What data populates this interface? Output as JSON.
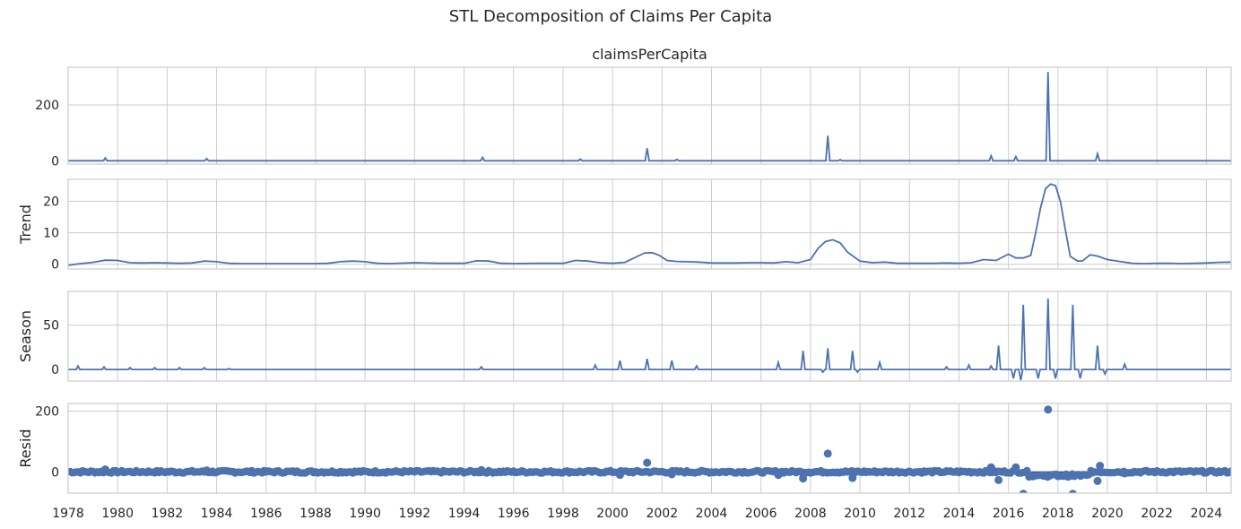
{
  "figure": {
    "title": "STL Decomposition of Claims Per Capita"
  },
  "chart_data": [
    {
      "type": "line",
      "title": "claimsPerCapita",
      "ylabel": "",
      "xlim": [
        1978,
        2025
      ],
      "ylim": [
        -12,
        335
      ],
      "yticks": [
        0,
        200
      ],
      "xticks": [
        1978,
        1980,
        1982,
        1984,
        1986,
        1988,
        1990,
        1992,
        1994,
        1996,
        1998,
        2000,
        2002,
        2004,
        2006,
        2008,
        2010,
        2012,
        2014,
        2016,
        2018,
        2020,
        2022,
        2024
      ],
      "xticks_shown": false,
      "grid": true,
      "color": "#4c72b0",
      "baseline": 0,
      "spikes": [
        [
          1979.5,
          10
        ],
        [
          1983.6,
          8
        ],
        [
          1994.75,
          12
        ],
        [
          1998.7,
          6
        ],
        [
          2001.4,
          45
        ],
        [
          2002.6,
          5
        ],
        [
          2008.7,
          90
        ],
        [
          2009.2,
          4
        ],
        [
          2015.3,
          18
        ],
        [
          2016.3,
          15
        ],
        [
          2017.6,
          318
        ],
        [
          2019.6,
          25
        ]
      ]
    },
    {
      "type": "line",
      "title": "",
      "ylabel": "Trend",
      "xlim": [
        1978,
        2025
      ],
      "ylim": [
        -1.5,
        27
      ],
      "yticks": [
        0,
        10,
        20
      ],
      "xticks": [
        1978,
        1980,
        1982,
        1984,
        1986,
        1988,
        1990,
        1992,
        1994,
        1996,
        1998,
        2000,
        2002,
        2004,
        2006,
        2008,
        2010,
        2012,
        2014,
        2016,
        2018,
        2020,
        2022,
        2024
      ],
      "xticks_shown": false,
      "grid": true,
      "color": "#4c72b0",
      "x": [
        1978,
        1978.5,
        1979,
        1979.5,
        1980,
        1980.5,
        1981,
        1981.5,
        1982,
        1982.5,
        1983,
        1983.5,
        1984,
        1984.5,
        1985,
        1986,
        1987,
        1988,
        1988.5,
        1989,
        1989.5,
        1990,
        1990.5,
        1991,
        1992,
        1993,
        1994,
        1994.5,
        1995,
        1995.5,
        1996,
        1997,
        1998,
        1998.5,
        1999,
        1999.5,
        2000,
        2000.5,
        2001,
        2001.3,
        2001.6,
        2001.9,
        2002.2,
        2002.6,
        2003,
        2003.5,
        2004,
        2004.5,
        2005,
        2005.5,
        2006,
        2006.5,
        2007,
        2007.5,
        2008,
        2008.3,
        2008.6,
        2008.9,
        2009.2,
        2009.5,
        2010,
        2010.5,
        2011,
        2011.5,
        2012,
        2012.5,
        2013,
        2013.5,
        2014,
        2014.5,
        2015,
        2015.5,
        2016,
        2016.3,
        2016.6,
        2016.9,
        2017.1,
        2017.3,
        2017.5,
        2017.7,
        2017.9,
        2018.1,
        2018.3,
        2018.5,
        2018.8,
        2019,
        2019.3,
        2019.6,
        2020,
        2020.5,
        2021,
        2021.5,
        2022,
        2022.5,
        2023,
        2023.5,
        2024,
        2024.5,
        2025
      ],
      "y": [
        -0.3,
        0.2,
        0.6,
        1.3,
        1.2,
        0.5,
        0.4,
        0.5,
        0.4,
        0.3,
        0.4,
        1.0,
        0.8,
        0.3,
        0.2,
        0.2,
        0.2,
        0.2,
        0.3,
        0.8,
        1.0,
        0.8,
        0.3,
        0.2,
        0.5,
        0.3,
        0.3,
        1.1,
        1.0,
        0.3,
        0.2,
        0.3,
        0.3,
        1.2,
        1.0,
        0.5,
        0.3,
        0.6,
        2.5,
        3.6,
        3.7,
        2.8,
        1.2,
        0.9,
        0.8,
        0.7,
        0.4,
        0.4,
        0.4,
        0.5,
        0.5,
        0.4,
        0.8,
        0.5,
        1.5,
        5.0,
        7.2,
        7.8,
        6.8,
        3.8,
        1.0,
        0.5,
        0.7,
        0.3,
        0.3,
        0.3,
        0.3,
        0.4,
        0.3,
        0.5,
        1.5,
        1.2,
        3.2,
        2.0,
        2.0,
        2.8,
        10,
        18,
        24,
        25.5,
        25,
        20,
        11,
        2.5,
        1.0,
        1.1,
        3.0,
        2.6,
        1.5,
        0.9,
        0.3,
        0.2,
        0.3,
        0.3,
        0.2,
        0.3,
        0.4,
        0.6,
        0.7
      ]
    },
    {
      "type": "line",
      "title": "",
      "ylabel": "Season",
      "xlim": [
        1978,
        2025
      ],
      "ylim": [
        -13,
        88
      ],
      "yticks": [
        0,
        50
      ],
      "xticks": [
        1978,
        1980,
        1982,
        1984,
        1986,
        1988,
        1990,
        1992,
        1994,
        1996,
        1998,
        2000,
        2002,
        2004,
        2006,
        2008,
        2010,
        2012,
        2014,
        2016,
        2018,
        2020,
        2022,
        2024
      ],
      "xticks_shown": false,
      "grid": true,
      "color": "#4c72b0",
      "baseline": 0,
      "spikes": [
        [
          1978.4,
          4
        ],
        [
          1979.45,
          3
        ],
        [
          1980.5,
          2
        ],
        [
          1981.5,
          2
        ],
        [
          1982.5,
          2
        ],
        [
          1983.5,
          2
        ],
        [
          1984.5,
          1
        ],
        [
          1994.7,
          3
        ],
        [
          1999.3,
          5
        ],
        [
          2000.3,
          10
        ],
        [
          2001.4,
          12
        ],
        [
          2002.4,
          10
        ],
        [
          2003.4,
          4
        ],
        [
          2006.7,
          8
        ],
        [
          2007.7,
          21
        ],
        [
          2008.7,
          24
        ],
        [
          2009.7,
          21
        ],
        [
          2010.8,
          8
        ],
        [
          2013.5,
          3
        ],
        [
          2014.4,
          5
        ],
        [
          2015.3,
          4
        ],
        [
          2015.6,
          27
        ],
        [
          2016.6,
          73
        ],
        [
          2017.6,
          80
        ],
        [
          2018.6,
          73
        ],
        [
          2019.6,
          27
        ],
        [
          2020.7,
          6
        ]
      ],
      "dips": [
        [
          2016.2,
          -10
        ],
        [
          2016.5,
          -12
        ],
        [
          2017.2,
          -10
        ],
        [
          2017.9,
          -10
        ],
        [
          2018.9,
          -10
        ],
        [
          2019.9,
          -5
        ],
        [
          2008.5,
          -3
        ],
        [
          2009.9,
          -3
        ]
      ]
    },
    {
      "type": "scatter",
      "title": "",
      "ylabel": "Resid",
      "xlim": [
        1978,
        2025
      ],
      "ylim": [
        -70,
        225
      ],
      "yticks": [
        0,
        200
      ],
      "xticks": [
        1978,
        1980,
        1982,
        1984,
        1986,
        1988,
        1990,
        1992,
        1994,
        1996,
        1998,
        2000,
        2002,
        2004,
        2006,
        2008,
        2010,
        2012,
        2014,
        2016,
        2018,
        2020,
        2022,
        2024
      ],
      "xticks_shown": true,
      "grid": true,
      "color": "#4c72b0",
      "baseline_line": 0,
      "outliers": [
        [
          1979.5,
          8
        ],
        [
          1983.6,
          5
        ],
        [
          1994.7,
          6
        ],
        [
          2000.3,
          -10
        ],
        [
          2001.4,
          30
        ],
        [
          2002.4,
          -8
        ],
        [
          2006.7,
          -10
        ],
        [
          2007.7,
          -22
        ],
        [
          2008.7,
          60
        ],
        [
          2009.7,
          -20
        ],
        [
          2015.3,
          15
        ],
        [
          2015.6,
          -27
        ],
        [
          2016.3,
          15
        ],
        [
          2016.6,
          -72
        ],
        [
          2017.6,
          205
        ],
        [
          2018.6,
          -72
        ],
        [
          2019.6,
          -30
        ],
        [
          2019.7,
          20
        ],
        [
          2020.7,
          -5
        ]
      ]
    }
  ]
}
